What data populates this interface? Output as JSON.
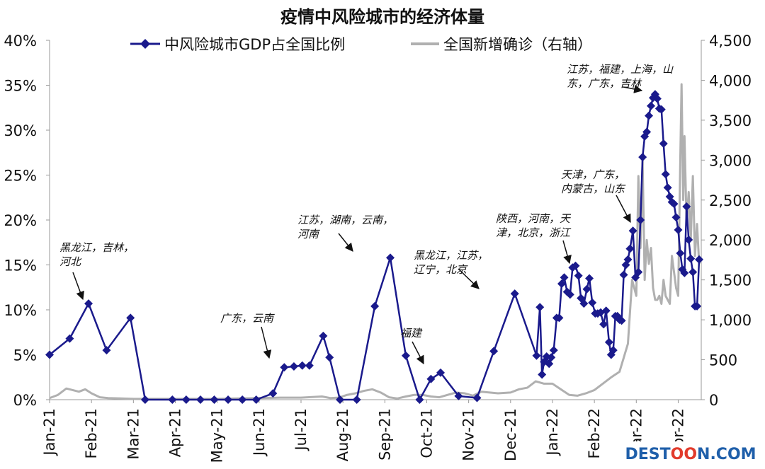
{
  "chart_data": {
    "type": "line",
    "title": "疫情中风险城市的经济体量",
    "legend": [
      "中风险城市GDP占全国比例",
      "全国新增确诊（右轴）"
    ],
    "legend_position": "top",
    "grid": false,
    "x_tick_labels": [
      "Jan-21",
      "Feb-21",
      "Mar-21",
      "Apr-21",
      "May-21",
      "Jun-21",
      "Jul-21",
      "Aug-21",
      "Sep-21",
      "Oct-21",
      "Nov-21",
      "Dec-21",
      "Jan-22",
      "Feb-22",
      "Mar-22",
      "Apr-22"
    ],
    "x_range": [
      0,
      15.55
    ],
    "y_left": {
      "range": [
        0,
        40
      ],
      "ticks": [
        "0%",
        "5%",
        "10%",
        "15%",
        "20%",
        "25%",
        "30%",
        "35%",
        "40%"
      ]
    },
    "y_right": {
      "range": [
        0,
        4500
      ],
      "ticks": [
        "0",
        "500",
        "1,000",
        "1,500",
        "2,000",
        "2,500",
        "3,000",
        "3,500",
        "4,000",
        "4,500"
      ]
    },
    "series": [
      {
        "name": "中风险城市GDP占全国比例",
        "axis": "left",
        "color": "#1a1a8c",
        "marker": "diamond",
        "x": [
          0.0,
          0.48,
          0.93,
          1.36,
          1.93,
          2.28,
          2.93,
          3.26,
          3.6,
          3.93,
          4.26,
          4.6,
          4.93,
          5.33,
          5.6,
          5.83,
          6.03,
          6.2,
          6.53,
          6.68,
          6.93,
          7.33,
          7.76,
          8.13,
          8.5,
          8.83,
          9.1,
          9.33,
          9.76,
          10.2,
          10.6,
          11.1,
          11.62,
          11.7,
          11.75,
          11.8,
          11.86,
          11.92,
          11.97,
          12.03,
          12.1,
          12.16,
          12.22,
          12.28,
          12.35,
          12.42,
          12.48,
          12.55,
          12.62,
          12.68,
          12.75,
          12.82,
          12.88,
          12.95,
          13.02,
          13.08,
          13.15,
          13.22,
          13.28,
          13.35,
          13.4,
          13.45,
          13.5,
          13.55,
          13.6,
          13.65,
          13.7,
          13.75,
          13.8,
          13.85,
          13.92,
          13.98,
          14.05,
          14.1,
          14.15,
          14.2,
          14.25,
          14.3,
          14.35,
          14.4,
          14.45,
          14.5,
          14.55,
          14.6,
          14.65,
          14.7,
          14.75,
          14.8,
          14.85,
          14.9,
          14.95,
          15.0,
          15.05,
          15.1,
          15.15,
          15.2,
          15.25,
          15.3,
          15.35,
          15.4,
          15.45,
          15.5
        ],
        "values": [
          5.0,
          6.8,
          10.7,
          5.5,
          9.1,
          0.0,
          0.0,
          0.0,
          0.0,
          0.0,
          0.0,
          0.0,
          0.0,
          0.7,
          3.6,
          3.7,
          3.8,
          3.8,
          7.1,
          4.7,
          0.0,
          0.0,
          10.4,
          15.8,
          4.9,
          0.0,
          2.3,
          3.0,
          0.4,
          0.2,
          5.4,
          11.8,
          4.9,
          10.3,
          2.8,
          4.2,
          4.8,
          4.0,
          4.7,
          5.5,
          9.1,
          9.1,
          12.9,
          13.6,
          12.0,
          11.7,
          14.7,
          14.9,
          13.8,
          11.3,
          10.7,
          12.3,
          13.5,
          10.8,
          9.6,
          9.6,
          9.7,
          8.4,
          9.9,
          6.4,
          5.0,
          5.5,
          9.3,
          9.3,
          8.9,
          8.8,
          13.9,
          15.0,
          15.6,
          16.8,
          18.8,
          13.6,
          14.2,
          20.0,
          27.0,
          29.3,
          29.8,
          31.6,
          32.7,
          33.6,
          34.0,
          33.5,
          32.4,
          32.3,
          28.5,
          25.1,
          23.6,
          22.6,
          22.0,
          21.8,
          20.3,
          18.9,
          16.3,
          14.5,
          14.1,
          21.5,
          17.8,
          15.7,
          14.2,
          10.4,
          10.4,
          15.6
        ]
      },
      {
        "name": "全国新增确诊（右轴）",
        "axis": "right",
        "color": "#b0b0b0",
        "x": [
          0.0,
          0.2,
          0.4,
          0.55,
          0.7,
          0.85,
          1.0,
          1.2,
          1.4,
          1.7,
          2.0,
          2.5,
          3.0,
          3.5,
          4.0,
          4.5,
          5.0,
          5.5,
          6.0,
          6.5,
          6.7,
          6.9,
          7.1,
          7.3,
          7.5,
          7.7,
          7.9,
          8.0,
          8.1,
          8.3,
          8.5,
          8.7,
          8.9,
          9.0,
          9.1,
          9.3,
          9.5,
          9.7,
          9.9,
          10.1,
          10.3,
          10.5,
          10.7,
          11.0,
          11.2,
          11.4,
          11.6,
          11.8,
          12.0,
          12.2,
          12.4,
          12.6,
          12.8,
          13.0,
          13.2,
          13.4,
          13.6,
          13.8,
          13.9,
          14.0,
          14.05,
          14.1,
          14.15,
          14.2,
          14.25,
          14.3,
          14.35,
          14.4,
          14.45,
          14.5,
          14.55,
          14.6,
          14.65,
          14.7,
          14.75,
          14.8,
          14.85,
          14.9,
          14.95,
          15.0,
          15.05,
          15.08,
          15.12,
          15.15,
          15.2,
          15.25,
          15.3,
          15.35,
          15.4,
          15.45,
          15.5
        ],
        "values": [
          20,
          60,
          140,
          120,
          100,
          130,
          80,
          30,
          20,
          15,
          10,
          10,
          10,
          10,
          10,
          15,
          20,
          25,
          25,
          40,
          20,
          25,
          60,
          80,
          110,
          130,
          90,
          60,
          30,
          15,
          40,
          60,
          60,
          50,
          40,
          30,
          60,
          90,
          80,
          50,
          100,
          90,
          80,
          90,
          130,
          150,
          230,
          200,
          200,
          130,
          60,
          50,
          80,
          120,
          200,
          280,
          350,
          700,
          1500,
          1300,
          2800,
          1900,
          3000,
          1500,
          2000,
          1700,
          1900,
          1400,
          1250,
          1250,
          1300,
          1200,
          1500,
          1300,
          1250,
          1200,
          1800,
          1600,
          1400,
          1300,
          3000,
          3950,
          2500,
          3300,
          2200,
          2600,
          2000,
          2800,
          1800,
          2200,
          1700
        ]
      }
    ],
    "annotations": [
      {
        "lines": [
          "黑龙江，吉林，",
          "河北"
        ]
      },
      {
        "lines": [
          "广东，云南"
        ]
      },
      {
        "lines": [
          "江苏，湖南，云南，",
          "河南"
        ]
      },
      {
        "lines": [
          "福建"
        ]
      },
      {
        "lines": [
          "黑龙江，江苏，",
          "辽宁，北京"
        ]
      },
      {
        "lines": [
          "陕西，河南，天",
          "津，北京，浙江"
        ]
      },
      {
        "lines": [
          "天津，广东，",
          "内蒙古，山东"
        ]
      },
      {
        "lines": [
          "江苏，福建，上海，山",
          "东，广东，吉林"
        ]
      }
    ]
  },
  "watermark": "DESTOON.COM"
}
